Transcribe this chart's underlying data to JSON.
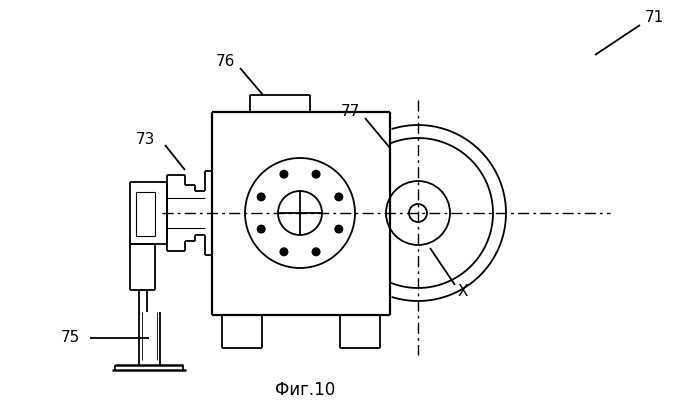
{
  "title": "Фиг.10",
  "background_color": "#ffffff",
  "line_color": "#000000",
  "figsize": [
    7.0,
    4.07
  ],
  "dpi": 100
}
